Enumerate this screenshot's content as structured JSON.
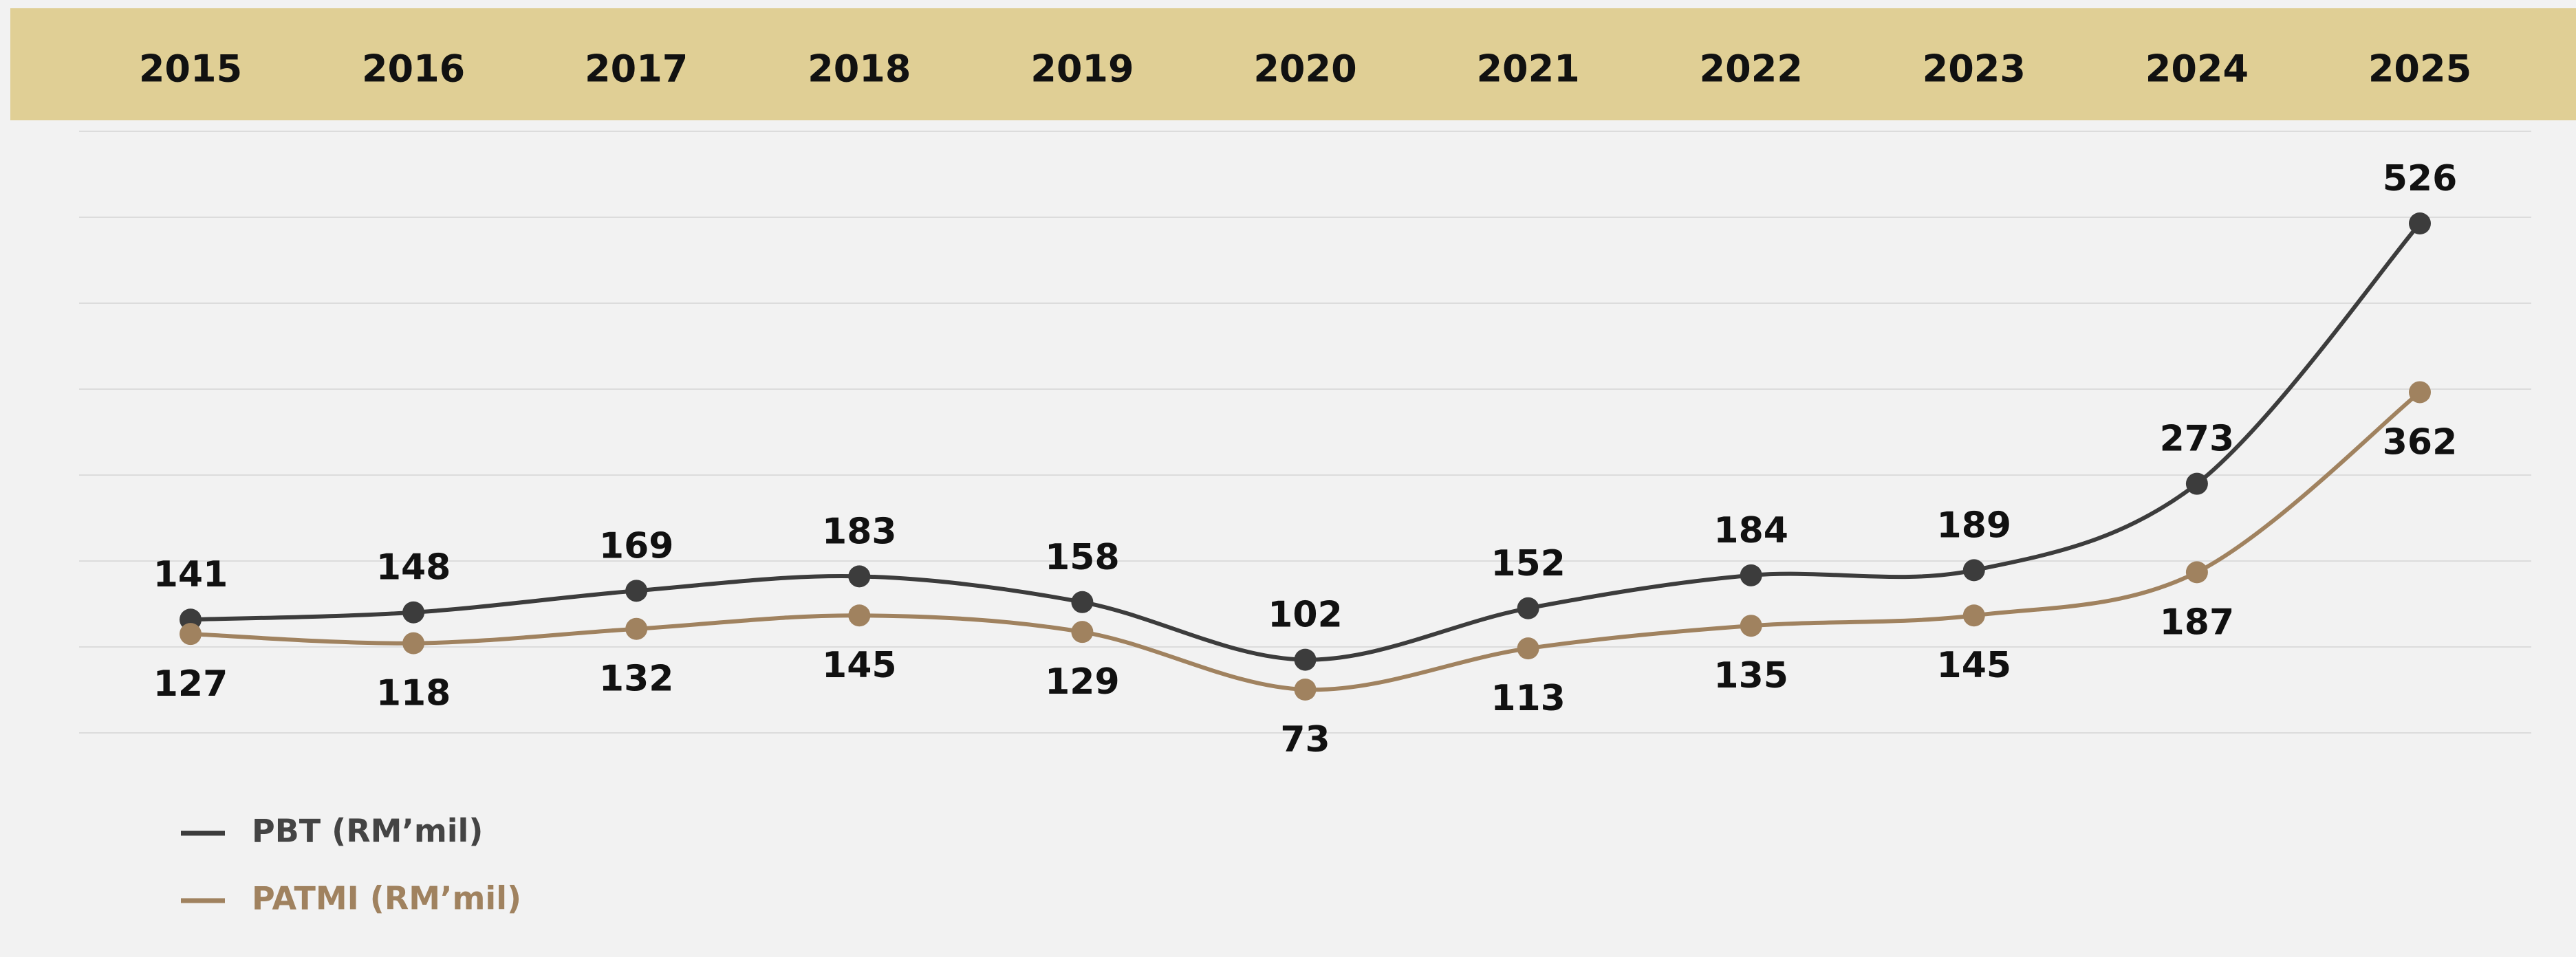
{
  "chart_data": {
    "type": "line",
    "categories": [
      "2015",
      "2016",
      "2017",
      "2018",
      "2019",
      "2020",
      "2021",
      "2022",
      "2023",
      "2024",
      "2025"
    ],
    "series": [
      {
        "name": "PBT (RM’mil)",
        "color": "#3c3c3c",
        "values": [
          141,
          148,
          169,
          183,
          158,
          102,
          152,
          184,
          189,
          273,
          526
        ]
      },
      {
        "name": "PATMI (RM’mil)",
        "color": "#a0825f",
        "values": [
          127,
          118,
          132,
          145,
          129,
          73,
          113,
          135,
          145,
          187,
          362
        ]
      }
    ],
    "grid": true
  }
}
